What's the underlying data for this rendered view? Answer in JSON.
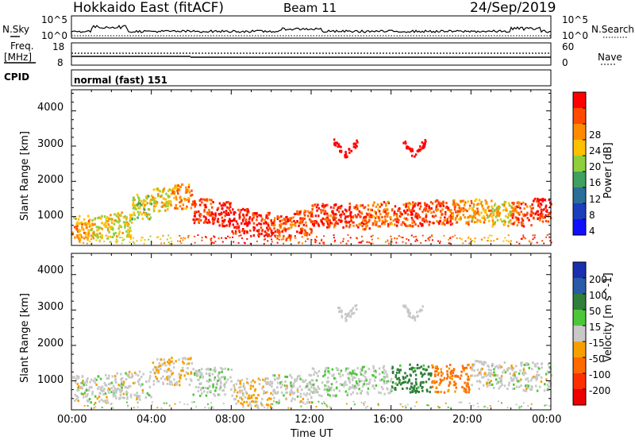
{
  "header": {
    "station": "Hokkaido East (fitACF)",
    "beam": "Beam 11",
    "date": "24/Sep/2019"
  },
  "nsky_panel": {
    "left_label": "N.Sky",
    "right_label": "N.Search",
    "left_ticks": [
      "10^5",
      "10^0"
    ],
    "right_ticks": [
      "10^5",
      "10^0"
    ]
  },
  "freq_panel": {
    "left_label_1": "Freq.",
    "left_label_2": "[MHz]",
    "right_label": "Nave",
    "left_ticks": [
      "18",
      "8"
    ],
    "right_ticks": [
      "60",
      "0"
    ]
  },
  "cpid": {
    "label": "CPID",
    "value": "normal (fast) 151"
  },
  "x_axis": {
    "label": "Time UT",
    "ticks": [
      "00:00",
      "04:00",
      "08:00",
      "12:00",
      "16:00",
      "20:00",
      "00:00"
    ]
  },
  "power_panel": {
    "ylabel": "Slant Range [km]",
    "yticks": [
      "4000",
      "3000",
      "2000",
      "1000"
    ],
    "colorbar_label": "Power [dB]",
    "colorbar_ticks": [
      "28",
      "24",
      "20",
      "16",
      "12",
      "8",
      "4"
    ],
    "colorbar_colors": [
      "#ff0000",
      "#ff4a00",
      "#ff8a00",
      "#ffc000",
      "#8fcf3c",
      "#3fa060",
      "#2a6e9a",
      "#1c3ebd",
      "#1010ff"
    ]
  },
  "velocity_panel": {
    "ylabel": "Slant Range [km]",
    "yticks": [
      "4000",
      "3000",
      "2000",
      "1000"
    ],
    "colorbar_label": "Velocity [m s^-1]",
    "colorbar_ticks": [
      "200",
      "100",
      "50",
      "15",
      "-15",
      "-50",
      "-100",
      "-200"
    ],
    "colorbar_colors": [
      "#1a2fb0",
      "#2a5aa8",
      "#2f7f3a",
      "#4ec63a",
      "#c8c8c8",
      "#f5a000",
      "#ff6a00",
      "#ff3000",
      "#ee0000"
    ]
  },
  "chart_data": [
    {
      "type": "heatmap",
      "title": "Power [dB]",
      "xlabel": "Time UT",
      "ylabel": "Slant Range [km]",
      "xlim": [
        "00:00",
        "24:00"
      ],
      "ylim": [
        180,
        4600
      ],
      "colorbar": {
        "label": "Power [dB]",
        "range": [
          0,
          32
        ]
      },
      "series": [
        {
          "name": "",
          "time_h": [
            0,
            1,
            2,
            3,
            4,
            5,
            6,
            7,
            8,
            9,
            10,
            11,
            12,
            13,
            14,
            15,
            16,
            17,
            18,
            19,
            20,
            21,
            22,
            23
          ],
          "range_km": [
            700,
            750,
            800,
            1300,
            1500,
            1600,
            1200,
            1100,
            900,
            800,
            700,
            850,
            1050,
            1050,
            1000,
            1100,
            1100,
            1100,
            1150,
            1150,
            1200,
            1100,
            1100,
            1200
          ],
          "power_db": [
            18,
            16,
            14,
            14,
            16,
            20,
            26,
            28,
            28,
            26,
            24,
            24,
            26,
            26,
            24,
            22,
            24,
            26,
            24,
            20,
            18,
            16,
            24,
            26
          ]
        }
      ]
    },
    {
      "type": "heatmap",
      "title": "Velocity [m s^-1]",
      "xlabel": "Time UT",
      "ylabel": "Slant Range [km]",
      "xlim": [
        "00:00",
        "24:00"
      ],
      "ylim": [
        180,
        4600
      ],
      "colorbar": {
        "label": "Velocity [m s^-1]",
        "range": [
          -200,
          200
        ]
      },
      "series": [
        {
          "name": "",
          "time_h": [
            0,
            2,
            4,
            6,
            8,
            10,
            12,
            14,
            16,
            18,
            20,
            22
          ],
          "range_km": [
            800,
            900,
            1300,
            1000,
            700,
            800,
            1000,
            1050,
            1100,
            1100,
            1200,
            1150
          ],
          "velocity_ms": [
            0,
            0,
            -10,
            5,
            -15,
            0,
            10,
            5,
            50,
            -60,
            0,
            0
          ]
        }
      ]
    }
  ]
}
